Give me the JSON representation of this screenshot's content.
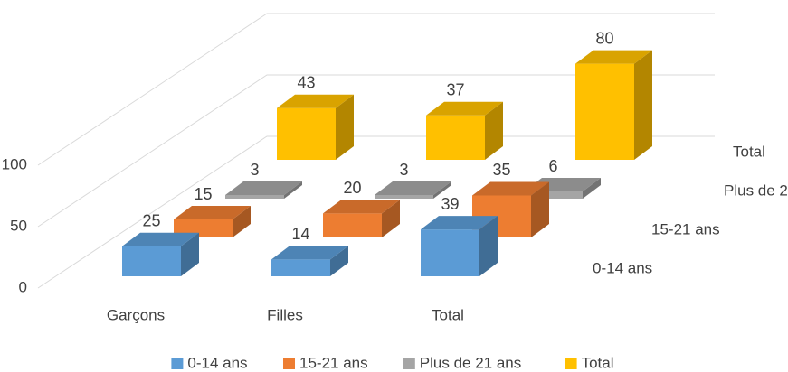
{
  "chart_data": {
    "type": "bar3d",
    "categories": [
      "Garçons",
      "Filles",
      "Total"
    ],
    "series": [
      {
        "name": "0-14 ans",
        "color": "#5b9bd5",
        "values": [
          25,
          14,
          39
        ]
      },
      {
        "name": "15-21 ans",
        "color": "#ed7d31",
        "values": [
          15,
          20,
          35
        ]
      },
      {
        "name": "Plus de 21 ans",
        "color": "#a5a5a5",
        "values": [
          3,
          3,
          6
        ]
      },
      {
        "name": "Total",
        "color": "#ffc000",
        "values": [
          43,
          37,
          80
        ]
      }
    ],
    "ylim": [
      0,
      100
    ],
    "yticks": [
      0,
      50,
      100
    ],
    "grid": true,
    "legend": "bottom"
  }
}
